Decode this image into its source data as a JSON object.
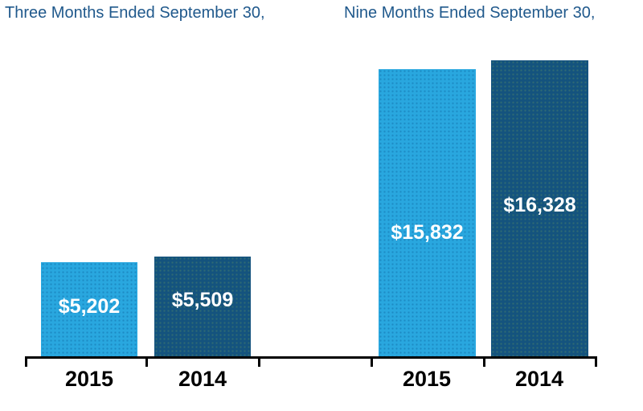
{
  "chart_data": {
    "type": "bar",
    "groups": [
      {
        "title": "Three Months Ended September 30,",
        "bars": [
          {
            "year": "2015",
            "value": 5202,
            "label": "$5,202"
          },
          {
            "year": "2014",
            "value": 5509,
            "label": "$5,509"
          }
        ]
      },
      {
        "title": "Nine Months Ended September 30,",
        "bars": [
          {
            "year": "2015",
            "value": 15832,
            "label": "$15,832"
          },
          {
            "year": "2014",
            "value": 16328,
            "label": "$16,328"
          }
        ]
      }
    ],
    "value_labels": [
      "$5,202",
      "$5,509",
      "$15,832",
      "$16,328"
    ],
    "x_tick_labels": [
      "2015",
      "2014",
      "2015",
      "2014"
    ],
    "ylim": [
      0,
      17500
    ],
    "grid": false,
    "legend": "none",
    "value_label_position": "inside",
    "colors": {
      "series_2015": "#29A7DF",
      "series_2014": "#14537E",
      "group_title_text": "#20598C",
      "value_label_text": "#FFFFFF",
      "year_label_text": "#000000",
      "axis": "#000000",
      "background": "#FFFFFF"
    }
  }
}
